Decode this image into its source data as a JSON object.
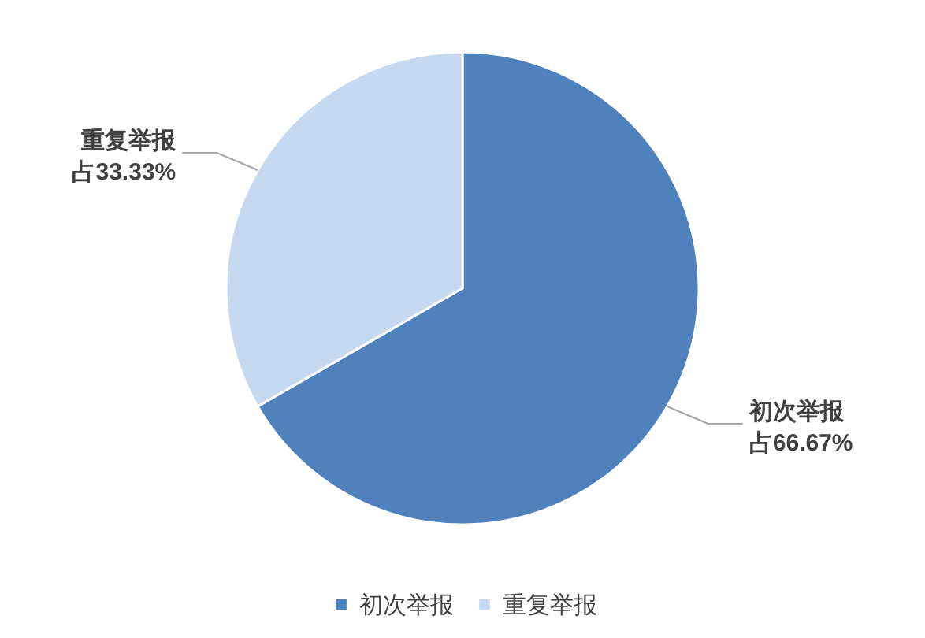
{
  "chart_data": {
    "type": "pie",
    "categories": [
      "初次举报",
      "重复举报"
    ],
    "values": [
      66.67,
      33.33
    ],
    "colors": [
      "#4f81bd",
      "#c6d9f0"
    ],
    "value_labels": [
      "占66.67%",
      "占33.33%"
    ],
    "legend": "bottom"
  }
}
